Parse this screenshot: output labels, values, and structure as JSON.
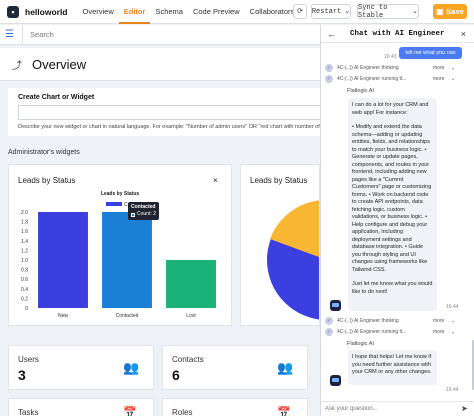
{
  "topbar": {
    "app_name": "helloworld",
    "tabs": [
      "Overview",
      "Editor",
      "Schema",
      "Code Preview",
      "Collaborators"
    ],
    "active_tab": "Editor",
    "restart_label": "Restart",
    "sync_label": "Sync to Stable",
    "save_label": "Save",
    "accent": "#e8841a",
    "save_color": "#f6a623"
  },
  "search": {
    "placeholder": "Search"
  },
  "overview": {
    "title": "Overview"
  },
  "create_widget": {
    "title": "Create Chart or Widget",
    "hint": "Describe your new widget or chart in natural language. For example: \"Number of admin users\" OR \"red chart with number of closed contract"
  },
  "widgets_section": {
    "label": "Administrator's widgets"
  },
  "widget1": {
    "title": "Leads by Status",
    "close": "×",
    "tooltip": {
      "status": "Contacted",
      "count_label": "Count: 2"
    }
  },
  "widget2": {
    "title": "Leads by Status"
  },
  "chart_data": {
    "type": "bar",
    "title": "Leads by Status",
    "categories": [
      "New",
      "Contacted",
      "Lost"
    ],
    "values": [
      2,
      2,
      1
    ],
    "colors": [
      "#3b3fe0",
      "#1c7fd6",
      "#1bb27a"
    ],
    "ylim": [
      0,
      2
    ],
    "yticks": [
      "0",
      "0.2",
      "0.4",
      "0.6",
      "0.8",
      "1.0",
      "1.2",
      "1.4",
      "1.6",
      "1.8",
      "2.0"
    ],
    "legend_label": "Co"
  },
  "stats": [
    {
      "label": "Users",
      "value": "3",
      "icon": "users-icon"
    },
    {
      "label": "Contacts",
      "value": "6",
      "icon": "contacts-icon"
    },
    {
      "label": "Tasks",
      "value": "",
      "icon": "calendar-icon"
    },
    {
      "label": "Roles",
      "value": "",
      "icon": "calendar-icon"
    }
  ],
  "chat": {
    "title": "Chat with AI Engineer",
    "user_message": "tell me what you can",
    "user_time": "16:43",
    "steps_top": [
      "4C-(..)) AI Engineer thinking",
      "4C-(..)) AI Engineer running tt..."
    ],
    "ai_name": "Flatlogic AI",
    "ai_reply": [
      "I can do a lot for your CRM and web app! For instance:",
      "• Modify and extend the data schema—adding or updating entities, fields, and relationships to match your business logic. • Generate or update pages, components, and routes in your frontend, including adding new pages like a \"Current Customers\" page or customizing forms. • Work on backend code to create API endpoints, data fetching logic, custom validations, or business logic. • Help configure and debug your application, including deployment settings and database integration. • Guide you through styling and UI changes using frameworks like Tailwind CSS.",
      "Just let me know what you would like to do next!"
    ],
    "ai_reply_time": "16:44",
    "steps_bottom": [
      "4C-(..)) AI Engineer thinking",
      "4C-(..)) AI Engineer running tt..."
    ],
    "ai_name2": "Flatlogic AI",
    "ai_reply2": "I hope that helps! Let me know if you need further assistance with your CRM or any other changes.",
    "ai_reply2_time": "16:44",
    "more_label": "more",
    "input_placeholder": "Ask your question..."
  }
}
